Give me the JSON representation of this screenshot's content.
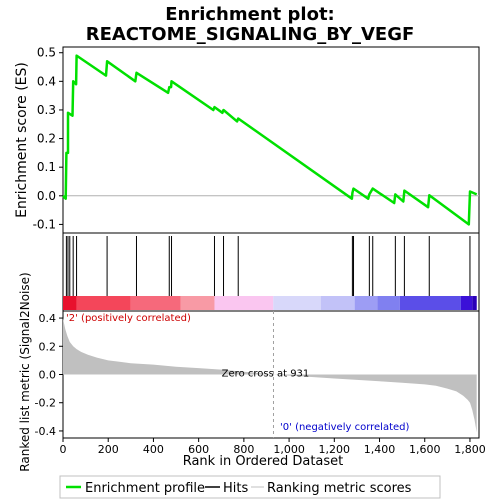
{
  "chart_data": {
    "type": "line",
    "title_line1": "Enrichment plot:",
    "title_line2": "REACTOME_SIGNALING_BY_VEGF",
    "es_ylabel": "Enrichment score (ES)",
    "metric_ylabel": "Ranked list metric (Signal2Noise)",
    "xlabel": "Rank in Ordered Dataset",
    "x_range": [
      0,
      1840
    ],
    "x_ticks": [
      "0",
      "200",
      "400",
      "600",
      "800",
      "1,000",
      "1,200",
      "1,400",
      "1,600",
      "1,800"
    ],
    "x_tick_values": [
      0,
      200,
      400,
      600,
      800,
      1000,
      1200,
      1400,
      1600,
      1800
    ],
    "es_ylim": [
      -0.13,
      0.52
    ],
    "es_ticks": [
      "-0.1",
      "0.0",
      "0.1",
      "0.2",
      "0.3",
      "0.4",
      "0.5"
    ],
    "es_tick_values": [
      -0.1,
      0,
      0.1,
      0.2,
      0.3,
      0.4,
      0.5
    ],
    "metric_ylim": [
      -0.45,
      0.45
    ],
    "metric_ticks": [
      "-0.4",
      "-0.2",
      "0.0",
      "0.2",
      "0.4"
    ],
    "metric_tick_values": [
      -0.4,
      -0.2,
      0,
      0.2,
      0.4
    ],
    "hits": [
      15,
      22,
      30,
      45,
      60,
      195,
      325,
      470,
      480,
      670,
      710,
      775,
      1280,
      1285,
      1355,
      1370,
      1470,
      1510,
      1620,
      1800
    ],
    "es_profile": [
      [
        0,
        0
      ],
      [
        12,
        -0.01
      ],
      [
        15,
        0.15
      ],
      [
        22,
        0.15
      ],
      [
        22,
        0.29
      ],
      [
        42,
        0.28
      ],
      [
        45,
        0.4
      ],
      [
        58,
        0.39
      ],
      [
        60,
        0.49
      ],
      [
        190,
        0.42
      ],
      [
        195,
        0.47
      ],
      [
        320,
        0.4
      ],
      [
        325,
        0.43
      ],
      [
        465,
        0.36
      ],
      [
        470,
        0.38
      ],
      [
        478,
        0.38
      ],
      [
        480,
        0.4
      ],
      [
        665,
        0.3
      ],
      [
        670,
        0.31
      ],
      [
        705,
        0.29
      ],
      [
        710,
        0.3
      ],
      [
        770,
        0.26
      ],
      [
        775,
        0.27
      ],
      [
        1278,
        -0.01
      ],
      [
        1280,
        0.01
      ],
      [
        1285,
        0.025
      ],
      [
        1350,
        -0.01
      ],
      [
        1355,
        0.005
      ],
      [
        1370,
        0.025
      ],
      [
        1465,
        -0.025
      ],
      [
        1470,
        0.005
      ],
      [
        1505,
        -0.02
      ],
      [
        1510,
        0.018
      ],
      [
        1615,
        -0.04
      ],
      [
        1620,
        0.002
      ],
      [
        1795,
        -0.1
      ],
      [
        1800,
        0.015
      ],
      [
        1830,
        0.005
      ]
    ],
    "metric_curve": [
      [
        0,
        0.4
      ],
      [
        5,
        0.36
      ],
      [
        10,
        0.32
      ],
      [
        20,
        0.27
      ],
      [
        30,
        0.23
      ],
      [
        45,
        0.2
      ],
      [
        60,
        0.18
      ],
      [
        80,
        0.16
      ],
      [
        110,
        0.14
      ],
      [
        150,
        0.12
      ],
      [
        200,
        0.1
      ],
      [
        250,
        0.09
      ],
      [
        300,
        0.08
      ],
      [
        400,
        0.07
      ],
      [
        500,
        0.055
      ],
      [
        600,
        0.045
      ],
      [
        700,
        0.035
      ],
      [
        800,
        0.02
      ],
      [
        900,
        0.006
      ],
      [
        931,
        0
      ],
      [
        1000,
        -0.008
      ],
      [
        1100,
        -0.018
      ],
      [
        1200,
        -0.028
      ],
      [
        1300,
        -0.038
      ],
      [
        1400,
        -0.048
      ],
      [
        1500,
        -0.058
      ],
      [
        1600,
        -0.07
      ],
      [
        1650,
        -0.08
      ],
      [
        1700,
        -0.1
      ],
      [
        1740,
        -0.12
      ],
      [
        1770,
        -0.15
      ],
      [
        1790,
        -0.18
      ],
      [
        1800,
        -0.2
      ],
      [
        1810,
        -0.25
      ],
      [
        1820,
        -0.32
      ],
      [
        1830,
        -0.41
      ]
    ],
    "zero_cross_rank": 931,
    "zero_cross_label": "Zero cross at 931",
    "pos_label": "'2' (positively correlated)",
    "neg_label": "'0' (negatively correlated)",
    "heat_segments": [
      {
        "x0": 0,
        "x1": 60,
        "color": "#e8112d"
      },
      {
        "x0": 60,
        "x1": 300,
        "color": "#f4465a"
      },
      {
        "x0": 300,
        "x1": 520,
        "color": "#f6697b"
      },
      {
        "x0": 520,
        "x1": 670,
        "color": "#f89aa5"
      },
      {
        "x0": 670,
        "x1": 930,
        "color": "#fac6f0"
      },
      {
        "x0": 930,
        "x1": 1140,
        "color": "#d8d8fa"
      },
      {
        "x0": 1140,
        "x1": 1290,
        "color": "#c2c2f8"
      },
      {
        "x0": 1290,
        "x1": 1390,
        "color": "#9d9df4"
      },
      {
        "x0": 1390,
        "x1": 1490,
        "color": "#8080f0"
      },
      {
        "x0": 1490,
        "x1": 1760,
        "color": "#5b4ee8"
      },
      {
        "x0": 1760,
        "x1": 1810,
        "color": "#3b10d8"
      },
      {
        "x0": 1810,
        "x1": 1830,
        "color": "#2a00b8"
      }
    ],
    "legend": [
      {
        "label": "Enrichment profile",
        "color": "#00e000"
      },
      {
        "label": "Hits",
        "color": "#000000"
      },
      {
        "label": "Ranking metric scores",
        "color": "#c0c0c0"
      }
    ],
    "colors": {
      "es_line": "#00e000",
      "hit_line": "#000000",
      "metric_fill": "#c0c0c0",
      "pos_label": "#cc0000",
      "neg_label": "#0000cc",
      "zero_line": "#b0b0b0"
    }
  }
}
